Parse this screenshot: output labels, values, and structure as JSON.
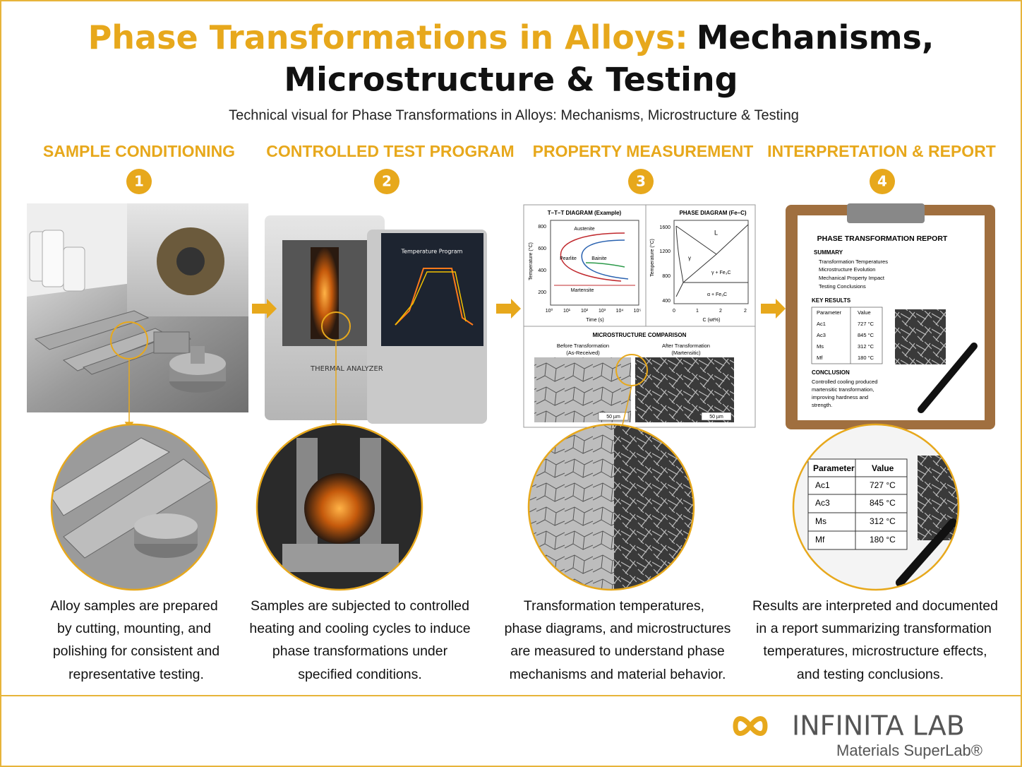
{
  "header": {
    "title_highlight": "Phase Transformations in Alloys:",
    "title_rest": "Mechanisms,",
    "title_line2": "Microstructure & Testing",
    "subtitle": "Technical visual for Phase Transformations in Alloys: Mechanisms, Microstructure & Testing"
  },
  "steps": [
    {
      "heading": "SAMPLE CONDITIONING",
      "number": "1",
      "description": [
        "Alloy samples are prepared",
        "by cutting, mounting, and",
        "polishing for consistent and",
        "representative testing."
      ]
    },
    {
      "heading": "CONTROLLED TEST PROGRAM",
      "number": "2",
      "description": [
        "Samples are subjected to controlled",
        "heating and cooling cycles to induce",
        "phase transformations under",
        "specified conditions."
      ]
    },
    {
      "heading": "PROPERTY MEASUREMENT",
      "number": "3",
      "description": [
        "Transformation temperatures,",
        "phase diagrams, and microstructures",
        "are measured to understand phase",
        "mechanisms and material behavior."
      ]
    },
    {
      "heading": "INTERPRETATION & REPORT",
      "number": "4",
      "description": [
        "Results are interpreted and documented",
        "in a report summarizing transformation",
        "temperatures, microstructure effects,",
        "and testing conclusions."
      ]
    }
  ],
  "panels": {
    "equipment_label": "THERMAL ANALYZER",
    "screen_title": "Temperature Program",
    "ttt": {
      "title": "T–T–T DIAGRAM (Example)",
      "y_label": "Temperature (°C)",
      "x_label": "Time (s)",
      "yticks": [
        "800",
        "600",
        "400",
        "200"
      ],
      "xticks": [
        "10⁰",
        "10¹",
        "10²",
        "10³",
        "10⁴",
        "10⁵"
      ],
      "curves": [
        "Austenite",
        "Pearlite",
        "Bainite",
        "Martensite"
      ]
    },
    "phase": {
      "title": "PHASE DIAGRAM (Fe–C)",
      "y_label": "Temperature (°C)",
      "x_label": "C (wt%)",
      "yticks": [
        "1600",
        "1200",
        "800",
        "400"
      ],
      "xticks": [
        "0",
        "1",
        "2",
        "2"
      ],
      "regions": [
        "L",
        "γ",
        "γ + Fe₃C",
        "α + Fe₃C"
      ]
    },
    "micro": {
      "title": "MICROSTRUCTURE COMPARISON",
      "before": "Before Transformation",
      "before_sub": "(As-Received)",
      "after": "After Transformation",
      "after_sub": "(Martensitic)",
      "scale": "50 µm"
    },
    "report": {
      "title": "PHASE TRANSFORMATION REPORT",
      "summary_title": "SUMMARY",
      "summary": [
        "Transformation Temperatures",
        "Microstructure Evolution",
        "Mechanical Property Impact",
        "Testing Conclusions"
      ],
      "results_title": "KEY RESULTS",
      "columns": [
        "Parameter",
        "Value"
      ],
      "rows": [
        [
          "Ac1",
          "727 °C"
        ],
        [
          "Ac3",
          "845 °C"
        ],
        [
          "Ms",
          "312 °C"
        ],
        [
          "Mf",
          "180 °C"
        ]
      ],
      "conclusion_title": "CONCLUSION",
      "conclusion": [
        "Controlled cooling produced",
        "martensitic transformation,",
        "improving hardness and",
        "strength."
      ]
    }
  },
  "footer": {
    "brand": "INFINITA LAB",
    "tagline": "Materials SuperLab®"
  }
}
